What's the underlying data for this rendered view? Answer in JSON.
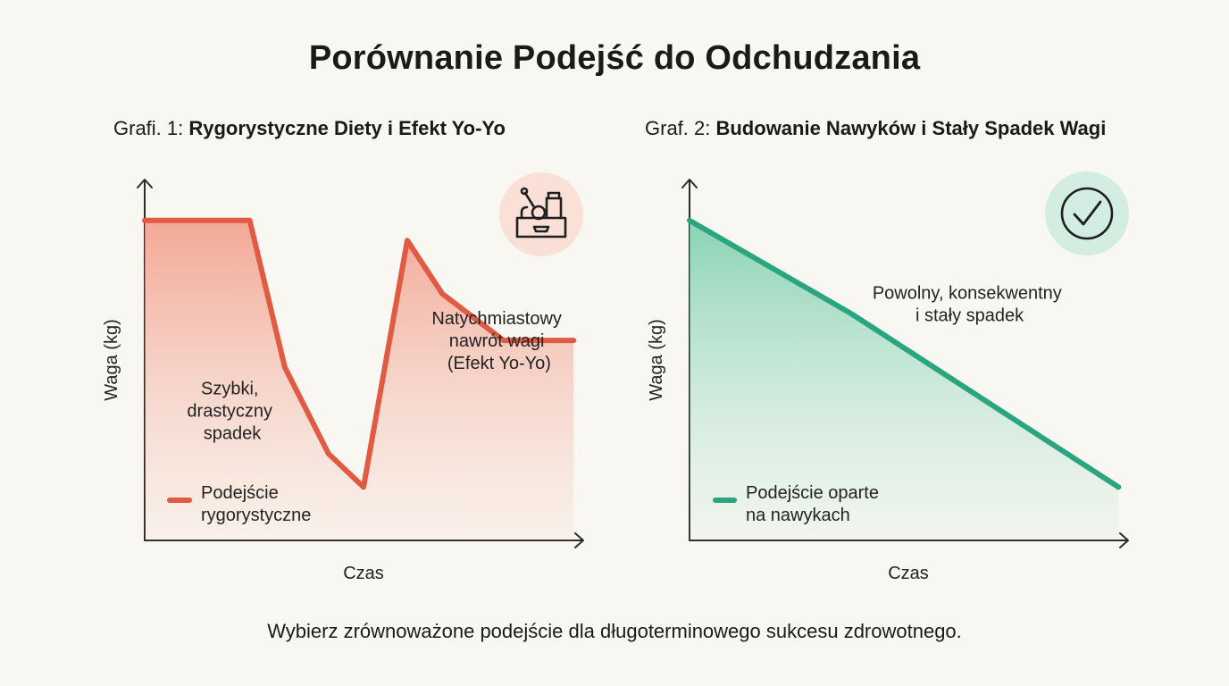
{
  "title": "Porównanie Podejść do Odchudzania",
  "footer": "Wybierz zrównoważone podejście dla długoterminowego sukcesu zdrowotnego.",
  "colors": {
    "rigorous": "#e05a44",
    "rigorous_fill": "#f4a08e",
    "habit": "#2aa57f",
    "habit_fill": "#7fd1b2",
    "icon1_bg": "#fbe0d8",
    "icon2_bg": "#d3ede3"
  },
  "chart_data": [
    {
      "type": "area",
      "title_prefix": "Grafi. 1: ",
      "title_bold": "Rygorystyczne Diety i Efekt Yo-Yo",
      "xlabel": "Czas",
      "ylabel": "Waga (kg)",
      "icon": "diet-food-box-icon",
      "x": [
        0,
        1.2,
        1.6,
        2.1,
        2.5,
        3.0,
        3.4,
        4.1,
        4.9
      ],
      "values": [
        90,
        90,
        68,
        55,
        50,
        87,
        79,
        72,
        72
      ],
      "xlim": [
        0,
        5
      ],
      "ylim": [
        42,
        96
      ],
      "series": [
        {
          "name": "Podejście rygorystyczne"
        }
      ],
      "legend_lines": [
        "Podejście",
        "rygorystyczne"
      ],
      "legend_position": "bottom-left",
      "annotations": [
        {
          "lines": [
            "Szybki,",
            "drastyczny",
            "spadek"
          ],
          "x": 1.0,
          "y": 61.5
        },
        {
          "lines": [
            "Natychmiastowy",
            "nawrót wagi",
            "(Efekt Yo-Yo)"
          ],
          "x": 4.05,
          "y": 72
        }
      ],
      "grid": false
    },
    {
      "type": "area",
      "title_prefix": "Graf. 2: ",
      "title_bold": "Budowanie Nawyków i Stały Spadek Wagi",
      "xlabel": "Czas",
      "ylabel": "Waga (kg)",
      "icon": "check-circle-icon",
      "x": [
        0,
        1.85,
        4.9
      ],
      "values": [
        90,
        76,
        50
      ],
      "xlim": [
        0,
        5
      ],
      "ylim": [
        42,
        96
      ],
      "series": [
        {
          "name": "Podejście oparte na nawykach"
        }
      ],
      "legend_lines": [
        "Podejście oparte",
        "na nawykach"
      ],
      "legend_position": "bottom-left",
      "annotations": [
        {
          "lines": [
            "Powolny, konsekwentny",
            "i stały spadek"
          ],
          "x": 3.2,
          "y": 77.5
        }
      ],
      "grid": false
    }
  ]
}
